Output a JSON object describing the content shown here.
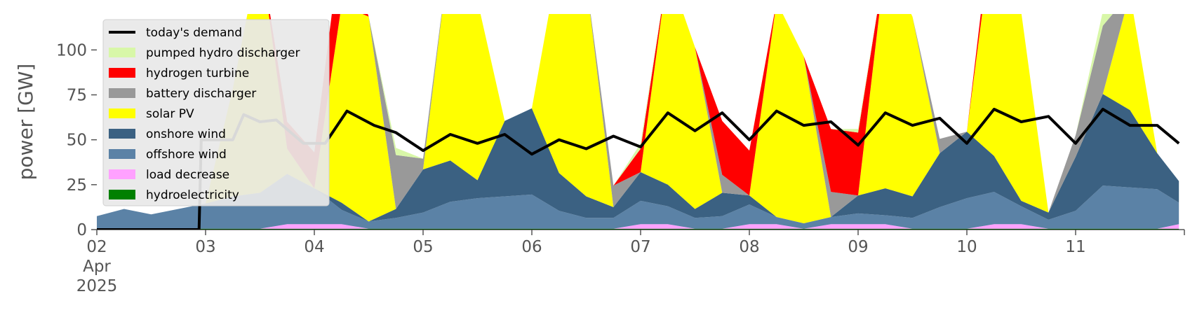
{
  "chart_data": {
    "type": "area",
    "ylabel": "power [GW]",
    "ylim": [
      0,
      120
    ],
    "yticks": [
      0,
      25,
      50,
      75,
      100
    ],
    "xlim": [
      "2025-04-02",
      "2025-04-12"
    ],
    "xticks": [
      {
        "date": "2025-04-02",
        "label": "02",
        "sublabel1": "Apr",
        "sublabel2": "2025"
      },
      {
        "date": "2025-04-03",
        "label": "03"
      },
      {
        "date": "2025-04-04",
        "label": "04"
      },
      {
        "date": "2025-04-05",
        "label": "05"
      },
      {
        "date": "2025-04-06",
        "label": "06"
      },
      {
        "date": "2025-04-07",
        "label": "07"
      },
      {
        "date": "2025-04-08",
        "label": "08"
      },
      {
        "date": "2025-04-09",
        "label": "09"
      },
      {
        "date": "2025-04-10",
        "label": "10"
      },
      {
        "date": "2025-04-11",
        "label": "11"
      }
    ],
    "grid": false,
    "legend_position": "top-left",
    "legend": [
      {
        "name": "today's demand",
        "kind": "line",
        "color": "#000000"
      },
      {
        "name": "pumped hydro discharger",
        "kind": "area",
        "color": "#d8f7a8"
      },
      {
        "name": "hydrogen turbine",
        "kind": "area",
        "color": "#ff0000"
      },
      {
        "name": "battery discharger",
        "kind": "area",
        "color": "#999999"
      },
      {
        "name": "solar PV",
        "kind": "area",
        "color": "#ffff00"
      },
      {
        "name": "onshore wind",
        "kind": "area",
        "color": "#3b6182"
      },
      {
        "name": "offshore wind",
        "kind": "area",
        "color": "#5b82a6"
      },
      {
        "name": "load decrease",
        "kind": "area",
        "color": "#ffa1ff"
      },
      {
        "name": "hydroelectricity",
        "kind": "area",
        "color": "#008000"
      }
    ],
    "x_days": [
      2.0,
      2.25,
      2.5,
      2.75,
      3.0,
      3.25,
      3.5,
      3.75,
      4.0,
      4.25,
      4.5,
      4.75,
      5.0,
      5.25,
      5.5,
      5.75,
      6.0,
      6.25,
      6.5,
      6.75,
      7.0,
      7.25,
      7.5,
      7.75,
      8.0,
      8.25,
      8.5,
      8.75,
      9.0,
      9.25,
      9.5,
      9.75,
      10.0,
      10.25,
      10.5,
      10.75,
      11.0,
      11.25,
      11.5,
      11.75,
      11.95
    ],
    "series": [
      {
        "name": "hydroelectricity",
        "color": "#008000",
        "values": [
          0.5,
          0.5,
          0.5,
          0.5,
          0.5,
          0.5,
          0.5,
          0.5,
          0.5,
          0.5,
          0.5,
          0.5,
          0.5,
          0.5,
          0.5,
          0.5,
          0.5,
          0.5,
          0.5,
          0.5,
          0.5,
          0.5,
          0.5,
          0.5,
          0.5,
          0.5,
          0.5,
          0.5,
          0.5,
          0.5,
          0.5,
          0.5,
          0.5,
          0.5,
          0.5,
          0.5,
          0.5,
          0.5,
          0.5,
          0.5,
          0.5
        ]
      },
      {
        "name": "load decrease",
        "color": "#ffa1ff",
        "values": [
          0,
          0,
          0,
          0,
          0,
          0,
          0,
          2.5,
          2.5,
          2.5,
          0,
          0,
          0,
          0,
          0,
          0,
          0,
          0,
          0,
          0,
          2.5,
          2.5,
          0,
          0,
          2.5,
          2.5,
          0,
          2.5,
          2.5,
          2.5,
          0,
          0,
          0,
          2.5,
          2.5,
          0,
          0,
          0,
          0,
          0,
          2.5
        ]
      },
      {
        "name": "offshore wind",
        "color": "#5b82a6",
        "values": [
          7,
          11,
          8,
          11,
          14,
          18,
          20,
          28,
          20,
          8,
          4,
          6,
          9,
          15,
          17,
          18,
          19,
          10,
          6,
          6,
          13,
          10,
          6,
          7,
          11,
          4,
          3,
          4,
          6,
          5,
          6,
          12,
          17,
          18,
          10,
          5,
          10,
          24,
          23,
          22,
          12
        ]
      },
      {
        "name": "onshore wind",
        "color": "#3b6182",
        "values": [
          0,
          0,
          0,
          0,
          0,
          0,
          0,
          0,
          0,
          4,
          0,
          5,
          24,
          23,
          10,
          42,
          48,
          21,
          12,
          6,
          16,
          12,
          5,
          13,
          5,
          0,
          0,
          0,
          10,
          15,
          12,
          30,
          37,
          20,
          3,
          4,
          30,
          51,
          43,
          20,
          12
        ]
      },
      {
        "name": "solar PV",
        "color": "#ffff00",
        "values": [
          0,
          0,
          0,
          0,
          0,
          60,
          135,
          14,
          0,
          110,
          114,
          0,
          0,
          120,
          100,
          0,
          0,
          120,
          120,
          0,
          0,
          120,
          90,
          0,
          0,
          120,
          93,
          0,
          0,
          126,
          100,
          0,
          0,
          130,
          105,
          0,
          0,
          0,
          65,
          0,
          0
        ]
      },
      {
        "name": "battery discharger",
        "color": "#999999",
        "values": [
          0,
          0,
          0,
          0,
          0,
          0,
          0,
          0,
          0,
          0,
          0,
          30,
          6,
          0,
          0,
          0,
          0,
          0,
          0,
          12,
          0,
          0,
          0,
          10,
          0,
          0,
          0,
          14,
          0,
          0,
          0,
          8,
          0,
          0,
          0,
          0,
          12,
          38,
          0,
          0,
          0
        ]
      },
      {
        "name": "hydrogen turbine",
        "color": "#ff0000",
        "values": [
          0,
          0,
          0,
          0,
          0,
          0,
          0,
          15,
          20,
          38,
          0,
          0,
          0,
          0,
          0,
          0,
          0,
          0,
          0,
          0,
          13,
          0,
          0,
          30,
          25,
          0,
          0,
          35,
          35,
          0,
          0,
          0,
          0,
          12,
          0,
          0,
          0,
          0,
          0,
          0,
          0
        ]
      },
      {
        "name": "pumped hydro discharger",
        "color": "#d8f7a8",
        "values": [
          0,
          0,
          0,
          0,
          0,
          0,
          0,
          0,
          0,
          0,
          0,
          4,
          0,
          0,
          0,
          0,
          0,
          0,
          0,
          0,
          3,
          0,
          0,
          0,
          0,
          0,
          0,
          0,
          2,
          0,
          0,
          0,
          0,
          0,
          0,
          0,
          0,
          8,
          0,
          0,
          0
        ]
      }
    ],
    "demand": {
      "name": "today's demand",
      "x_days": [
        2.0,
        2.94,
        2.96,
        3.0,
        3.25,
        3.35,
        3.5,
        3.65,
        3.9,
        4.1,
        4.3,
        4.55,
        4.75,
        5.0,
        5.25,
        5.5,
        5.75,
        6.0,
        6.25,
        6.5,
        6.75,
        7.0,
        7.25,
        7.5,
        7.75,
        8.0,
        8.25,
        8.5,
        8.75,
        9.0,
        9.25,
        9.5,
        9.75,
        10.0,
        10.25,
        10.5,
        10.75,
        11.0,
        11.25,
        11.5,
        11.75,
        11.95
      ],
      "values": [
        0,
        0,
        50,
        50,
        50,
        64,
        60,
        61,
        48,
        48,
        66,
        58,
        54,
        44,
        53,
        48,
        53,
        42,
        50,
        45,
        52,
        46,
        65,
        55,
        65,
        50,
        66,
        58,
        60,
        47,
        65,
        58,
        62,
        48,
        67,
        60,
        63,
        48,
        67,
        58,
        58,
        48
      ]
    }
  }
}
